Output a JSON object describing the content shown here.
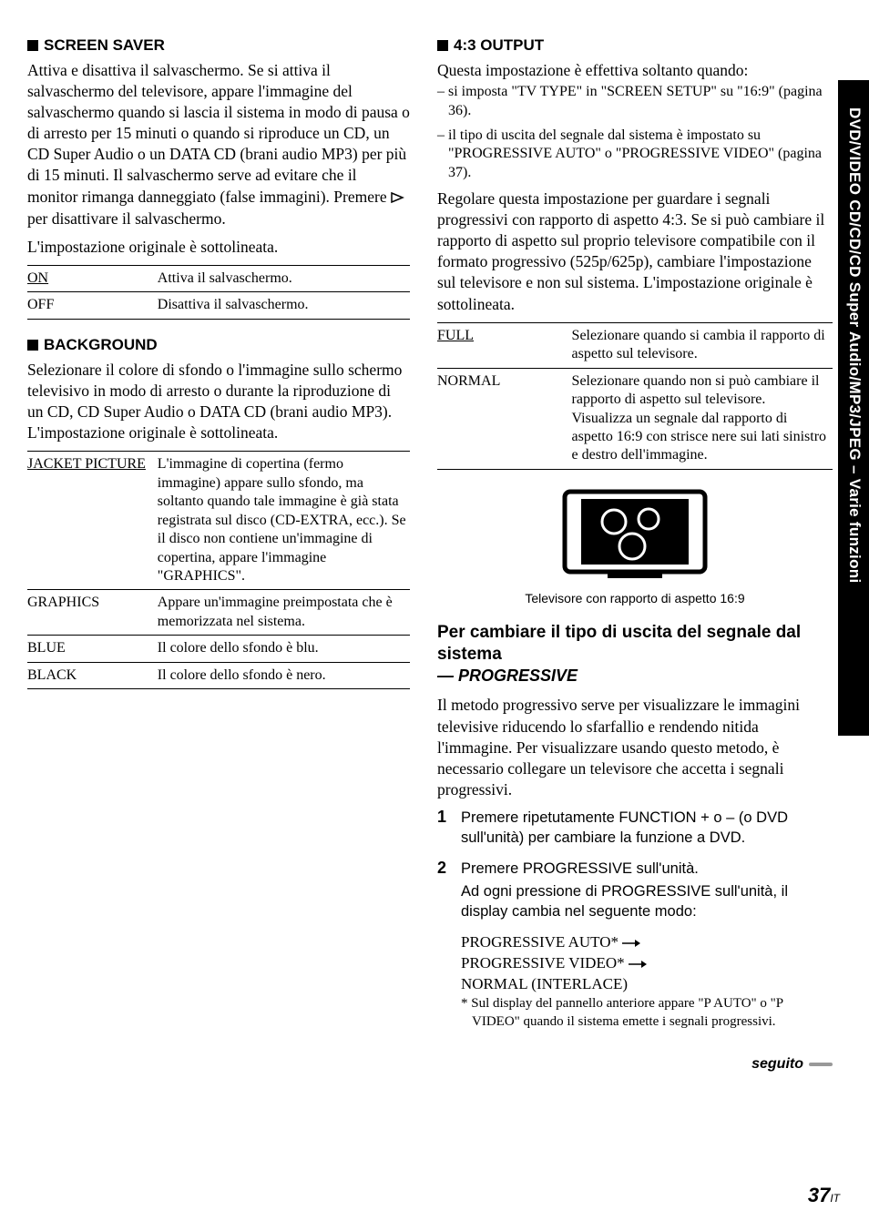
{
  "left": {
    "screenSaver": {
      "heading": "SCREEN SAVER",
      "paragraph": "Attiva e disattiva il salvaschermo. Se si attiva il salvaschermo del televisore, appare l'immagine del salvaschermo quando si lascia il sistema in modo di pausa o di arresto per 15 minuti o quando si riproduce un CD, un CD Super Audio o un DATA CD (brani audio MP3) per più di 15 minuti. Il salvaschermo serve ad evitare che il monitor rimanga danneggiato (false immagini). Premere ",
      "paragraph2": " per disattivare il salvaschermo.",
      "note": "L'impostazione originale è sottolineata.",
      "rows": [
        {
          "k": "ON",
          "v": "Attiva il salvaschermo.",
          "u": true
        },
        {
          "k": "OFF",
          "v": "Disattiva il salvaschermo.",
          "u": false
        }
      ]
    },
    "background": {
      "heading": "BACKGROUND",
      "paragraph": "Selezionare il colore di sfondo o l'immagine sullo schermo televisivo in modo di arresto o durante la riproduzione di un CD, CD Super Audio o DATA CD (brani audio MP3). L'impostazione originale è sottolineata.",
      "rows": [
        {
          "k": "JACKET PICTURE",
          "v": "L'immagine di copertina (fermo immagine) appare sullo sfondo, ma soltanto quando tale immagine è già stata registrata sul disco (CD-EXTRA, ecc.). Se il disco non contiene un'immagine di copertina, appare l'immagine \"GRAPHICS\".",
          "u": true
        },
        {
          "k": "GRAPHICS",
          "v": "Appare un'immagine preimpostata che è memorizzata nel sistema.",
          "u": false
        },
        {
          "k": "BLUE",
          "v": "Il colore dello sfondo è blu.",
          "u": false
        },
        {
          "k": "BLACK",
          "v": "Il colore dello sfondo è nero.",
          "u": false
        }
      ]
    }
  },
  "right": {
    "output43": {
      "heading": "4:3 OUTPUT",
      "intro": "Questa impostazione è effettiva soltanto quando:",
      "dashes": [
        "– si imposta \"TV TYPE\" in \"SCREEN SETUP\" su \"16:9\" (pagina 36).",
        "– il tipo di uscita del segnale dal sistema è impostato su \"PROGRESSIVE AUTO\" o \"PROGRESSIVE VIDEO\" (pagina 37)."
      ],
      "paragraph": "Regolare questa impostazione per guardare i segnali progressivi con rapporto di aspetto 4:3. Se si può cambiare il rapporto di aspetto sul proprio televisore compatibile con il formato progressivo (525p/625p), cambiare l'impostazione sul televisore e non sul sistema. L'impostazione originale è sottolineata.",
      "rows": [
        {
          "k": "FULL",
          "v": "Selezionare quando si cambia il rapporto di aspetto sul televisore.",
          "u": true
        },
        {
          "k": "NORMAL",
          "v": "Selezionare quando non si può cambiare il rapporto di aspetto sul televisore. Visualizza un segnale dal rapporto di aspetto 16:9 con strisce nere sui lati sinistro e destro dell'immagine.",
          "u": false
        }
      ],
      "caption": "Televisore con rapporto di aspetto 16:9"
    },
    "progressive": {
      "title": "Per cambiare il tipo di uscita del segnale dal sistema",
      "subtitle": "— PROGRESSIVE",
      "paragraph": "Il metodo progressivo serve per visualizzare le immagini televisive  riducendo lo sfarfallio e rendendo nitida l'immagine. Per visualizzare usando questo metodo, è necessario collegare un televisore che accetta i segnali progressivi.",
      "steps": [
        {
          "n": "1",
          "t": "Premere ripetutamente FUNCTION + o – (o DVD sull'unità) per cambiare la funzione a DVD."
        },
        {
          "n": "2",
          "t": "Premere PROGRESSIVE sull'unità.",
          "t2": "Ad ogni pressione di PROGRESSIVE sull'unità, il display cambia nel seguente modo:"
        }
      ],
      "seq": [
        "PROGRESSIVE AUTO* ",
        "PROGRESSIVE VIDEO* ",
        "NORMAL (INTERLACE)"
      ],
      "footnote": "* Sul display del pannello anteriore appare \"P AUTO\" o \"P VIDEO\" quando il sistema emette i segnali progressivi.",
      "seguito": "seguito"
    }
  },
  "side": "DVD/VIDEO CD/CD/CD Super Audio/MP3/JPEG – Varie funzioni",
  "page": {
    "num": "37",
    "suffix": "IT"
  },
  "svg": {
    "play": "<svg width='18' height='12' viewBox='0 0 18 12'><polygon points='1,1 13,6 1,11' fill='none' stroke='#000' stroke-width='1.5'/></svg>",
    "arrow": "<svg width='20' height='10' viewBox='0 0 20 10' style='vertical-align:-1px'><line x1='0' y1='5' x2='15' y2='5' stroke='#000' stroke-width='1.5'/><polygon points='14,1 20,5 14,9' fill='#000'/></svg>",
    "tv": "<svg width='170' height='110' viewBox='0 0 170 110'><rect x='8' y='6' width='154' height='88' rx='6' fill='none' stroke='#000' stroke-width='5'/><rect x='26' y='14' width='118' height='72' fill='#000'/><circle cx='62' cy='39' r='13' fill='none' stroke='#fff' stroke-width='3'/><circle cx='100' cy='36' r='11' fill='none' stroke='#fff' stroke-width='3'/><circle cx='82' cy='66' r='14' fill='none' stroke='#fff' stroke-width='3'/><line x1='55' y1='98' x2='115' y2='98' stroke='#000' stroke-width='6'/></svg>"
  }
}
